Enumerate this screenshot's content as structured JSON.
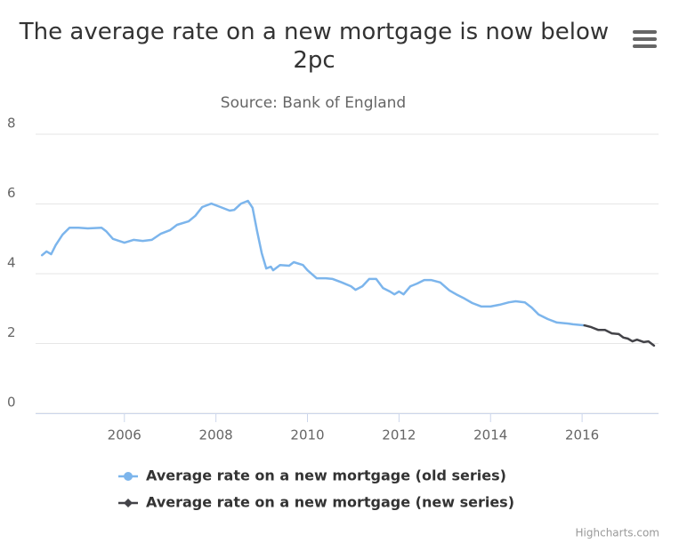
{
  "chart_data": {
    "type": "line",
    "title": "The average rate on a new mortgage is now below 2pc",
    "subtitle": "Source: Bank of England",
    "credits": "Highcharts.com",
    "xlim": [
      2004.06,
      2017.67
    ],
    "xticks": [
      2006,
      2008,
      2010,
      2012,
      2014,
      2016
    ],
    "ylim": [
      0,
      8
    ],
    "yticks": [
      0,
      2,
      4,
      6,
      8
    ],
    "grid": true,
    "legend": "bottom",
    "series": [
      {
        "name": "Average rate on a new mortgage (old series)",
        "color": "#7cb5ec",
        "marker": "circle",
        "x": [
          2004.2,
          2004.3,
          2004.4,
          2004.5,
          2004.65,
          2004.8,
          2005.0,
          2005.2,
          2005.5,
          2005.6,
          2005.75,
          2006.0,
          2006.2,
          2006.4,
          2006.6,
          2006.8,
          2007.0,
          2007.15,
          2007.4,
          2007.55,
          2007.7,
          2007.9,
          2008.1,
          2008.3,
          2008.4,
          2008.55,
          2008.7,
          2008.8,
          2008.9,
          2009.0,
          2009.1,
          2009.2,
          2009.25,
          2009.4,
          2009.6,
          2009.7,
          2009.9,
          2010.0,
          2010.2,
          2010.4,
          2010.55,
          2010.75,
          2010.95,
          2011.05,
          2011.2,
          2011.35,
          2011.5,
          2011.65,
          2011.8,
          2011.9,
          2012.0,
          2012.1,
          2012.25,
          2012.4,
          2012.55,
          2012.7,
          2012.9,
          2013.1,
          2013.25,
          2013.4,
          2013.6,
          2013.8,
          2014.0,
          2014.2,
          2014.4,
          2014.55,
          2014.75,
          2014.9,
          2015.05,
          2015.25,
          2015.45,
          2015.7,
          2015.8,
          2016.05
        ],
        "values": [
          4.53,
          4.64,
          4.56,
          4.82,
          5.12,
          5.32,
          5.32,
          5.3,
          5.32,
          5.22,
          5.0,
          4.89,
          4.97,
          4.94,
          4.97,
          5.15,
          5.25,
          5.4,
          5.5,
          5.66,
          5.91,
          6.01,
          5.91,
          5.81,
          5.83,
          6.01,
          6.09,
          5.89,
          5.22,
          4.59,
          4.15,
          4.2,
          4.1,
          4.25,
          4.23,
          4.33,
          4.25,
          4.1,
          3.87,
          3.87,
          3.85,
          3.75,
          3.64,
          3.54,
          3.64,
          3.85,
          3.85,
          3.59,
          3.49,
          3.41,
          3.49,
          3.41,
          3.64,
          3.72,
          3.82,
          3.82,
          3.75,
          3.52,
          3.41,
          3.31,
          3.16,
          3.06,
          3.06,
          3.11,
          3.18,
          3.21,
          3.18,
          3.03,
          2.83,
          2.7,
          2.6,
          2.57,
          2.55,
          2.52
        ]
      },
      {
        "name": "Average rate on a new mortgage (new series)",
        "color": "#434348",
        "marker": "diamond",
        "x": [
          2016.05,
          2016.2,
          2016.35,
          2016.5,
          2016.65,
          2016.8,
          2016.9,
          2017.0,
          2017.1,
          2017.2,
          2017.35,
          2017.45,
          2017.57
        ],
        "values": [
          2.52,
          2.47,
          2.39,
          2.39,
          2.29,
          2.27,
          2.17,
          2.14,
          2.06,
          2.11,
          2.04,
          2.06,
          1.94
        ]
      }
    ]
  }
}
